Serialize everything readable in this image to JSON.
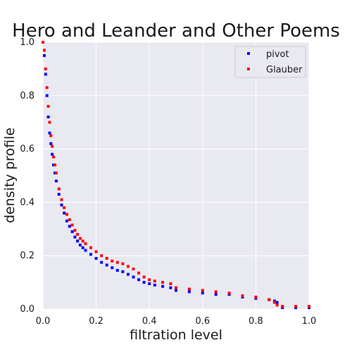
{
  "chart_data": {
    "type": "scatter",
    "title": "Hero and Leander and Other Poems",
    "xlabel": "filtration level",
    "ylabel": "density profile",
    "xlim": [
      0,
      1
    ],
    "ylim": [
      0,
      1
    ],
    "xticks": [
      "0.0",
      "0.2",
      "0.4",
      "0.6",
      "0.8",
      "1.0"
    ],
    "yticks": [
      "0.0",
      "0.2",
      "0.4",
      "0.6",
      "0.8",
      "1.0"
    ],
    "grid": true,
    "legend_position": "top-right",
    "background": "#e9e9f2",
    "series": [
      {
        "name": "pivot",
        "color": "#0000ff",
        "x": [
          0.0,
          0.005,
          0.01,
          0.015,
          0.02,
          0.025,
          0.03,
          0.035,
          0.04,
          0.045,
          0.05,
          0.06,
          0.07,
          0.08,
          0.09,
          0.1,
          0.11,
          0.12,
          0.13,
          0.14,
          0.15,
          0.16,
          0.18,
          0.2,
          0.22,
          0.24,
          0.26,
          0.28,
          0.3,
          0.32,
          0.34,
          0.36,
          0.38,
          0.4,
          0.42,
          0.45,
          0.48,
          0.5,
          0.55,
          0.6,
          0.65,
          0.7,
          0.75,
          0.8,
          0.85,
          0.87,
          0.88,
          0.9,
          0.95,
          1.0
        ],
        "y": [
          1.0,
          0.95,
          0.88,
          0.8,
          0.72,
          0.66,
          0.62,
          0.58,
          0.54,
          0.51,
          0.48,
          0.43,
          0.39,
          0.36,
          0.33,
          0.31,
          0.29,
          0.27,
          0.255,
          0.24,
          0.23,
          0.22,
          0.205,
          0.19,
          0.175,
          0.165,
          0.155,
          0.145,
          0.14,
          0.13,
          0.12,
          0.11,
          0.1,
          0.095,
          0.09,
          0.085,
          0.08,
          0.07,
          0.065,
          0.06,
          0.055,
          0.055,
          0.045,
          0.04,
          0.035,
          0.03,
          0.025,
          0.005,
          0.005,
          0.005
        ]
      },
      {
        "name": "Glauber",
        "color": "#ff0000",
        "x": [
          0.0,
          0.005,
          0.01,
          0.015,
          0.02,
          0.025,
          0.03,
          0.035,
          0.04,
          0.045,
          0.05,
          0.06,
          0.07,
          0.08,
          0.09,
          0.1,
          0.11,
          0.12,
          0.13,
          0.14,
          0.15,
          0.16,
          0.18,
          0.2,
          0.22,
          0.24,
          0.26,
          0.28,
          0.3,
          0.32,
          0.34,
          0.36,
          0.38,
          0.4,
          0.42,
          0.45,
          0.48,
          0.5,
          0.55,
          0.6,
          0.65,
          0.7,
          0.75,
          0.8,
          0.85,
          0.87,
          0.88,
          0.9,
          0.95,
          1.0
        ],
        "y": [
          1.0,
          0.97,
          0.9,
          0.83,
          0.76,
          0.7,
          0.65,
          0.61,
          0.57,
          0.54,
          0.51,
          0.45,
          0.41,
          0.38,
          0.355,
          0.335,
          0.315,
          0.295,
          0.28,
          0.265,
          0.255,
          0.245,
          0.23,
          0.215,
          0.2,
          0.19,
          0.18,
          0.175,
          0.17,
          0.16,
          0.15,
          0.135,
          0.12,
          0.11,
          0.105,
          0.1,
          0.095,
          0.08,
          0.075,
          0.07,
          0.065,
          0.06,
          0.05,
          0.045,
          0.035,
          0.025,
          0.015,
          0.01,
          0.01,
          0.01
        ]
      }
    ]
  }
}
